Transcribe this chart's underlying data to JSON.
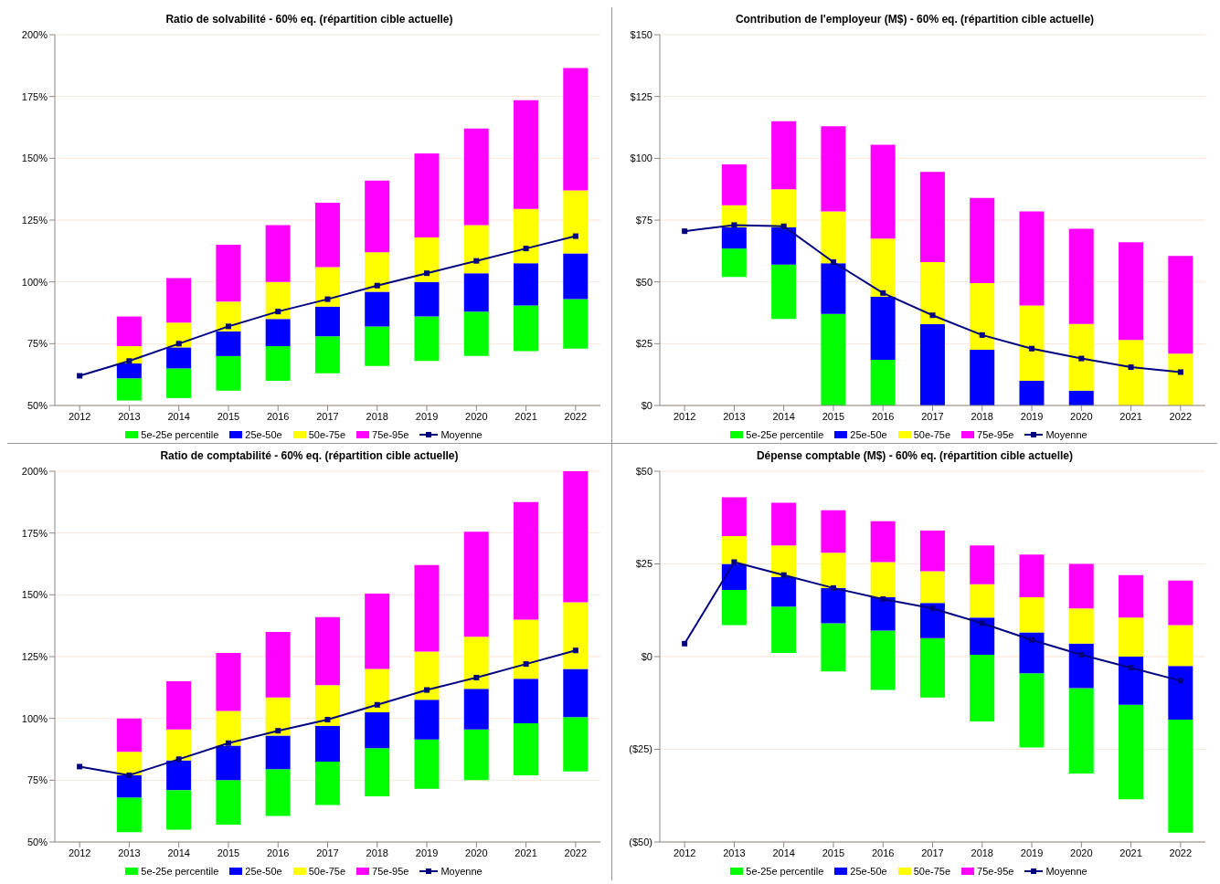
{
  "chart_data": [
    {
      "type": "bar",
      "title": "Ratio de solvabilité - 60% eq. (répartition cible actuelle)",
      "categories": [
        "2012",
        "2013",
        "2014",
        "2015",
        "2016",
        "2017",
        "2018",
        "2019",
        "2020",
        "2021",
        "2022"
      ],
      "series": [
        {
          "name": "5e-25e percentile",
          "color": "#00ff00",
          "base": [
            null,
            52,
            53,
            56,
            60,
            63,
            66,
            68,
            70,
            72,
            73
          ],
          "values": [
            null,
            9,
            12,
            14,
            14,
            15,
            16,
            18,
            18,
            18.5,
            20
          ]
        },
        {
          "name": "25e-50e",
          "color": "#0000ff",
          "base": [
            null,
            61,
            65,
            70,
            74,
            78,
            82,
            86,
            88,
            90.5,
            93
          ],
          "values": [
            null,
            6,
            8.5,
            10,
            11,
            12,
            14,
            14,
            15.5,
            17,
            18.5
          ]
        },
        {
          "name": "50e-75e",
          "color": "#ffff00",
          "base": [
            null,
            67,
            73.5,
            80,
            85,
            90,
            96,
            100,
            103.5,
            107.5,
            111.5
          ],
          "values": [
            null,
            7,
            10,
            12,
            15,
            16,
            16,
            18,
            19.5,
            22,
            25.5
          ]
        },
        {
          "name": "75e-95e",
          "color": "#ff00ff",
          "base": [
            null,
            74,
            83.5,
            92,
            100,
            106,
            112,
            118,
            123,
            129.5,
            137
          ],
          "values": [
            null,
            12,
            18,
            23,
            23,
            26,
            29,
            34,
            39,
            44,
            49.5
          ]
        },
        {
          "name": "Moyenne",
          "color": "#000080",
          "type": "line",
          "values": [
            62,
            68,
            75,
            82,
            88,
            93,
            98.5,
            103.5,
            108.5,
            113.5,
            118.5
          ]
        }
      ],
      "ylim": [
        50,
        200
      ],
      "yticks": [
        {
          "value": 50,
          "label": "50%"
        },
        {
          "value": 75,
          "label": "75%"
        },
        {
          "value": 100,
          "label": "100%"
        },
        {
          "value": 125,
          "label": "125%"
        },
        {
          "value": 150,
          "label": "150%"
        },
        {
          "value": 175,
          "label": "175%"
        },
        {
          "value": 200,
          "label": "200%"
        }
      ],
      "grid": "y",
      "legend": "bottom",
      "marker": "square"
    },
    {
      "type": "bar",
      "title": "Contribution de l'employeur (M$) - 60% eq. (répartition cible actuelle)",
      "categories": [
        "2012",
        "2013",
        "2014",
        "2015",
        "2016",
        "2017",
        "2018",
        "2019",
        "2020",
        "2021",
        "2022"
      ],
      "series": [
        {
          "name": "5e-25e percentile",
          "color": "#00ff00",
          "base": [
            null,
            52,
            35,
            0,
            0,
            null,
            null,
            null,
            null,
            null,
            null
          ],
          "values": [
            null,
            11.5,
            22,
            37,
            18.5,
            null,
            null,
            null,
            null,
            null,
            null
          ]
        },
        {
          "name": "25e-50e",
          "color": "#0000ff",
          "base": [
            null,
            63.5,
            57,
            37,
            18.5,
            0,
            0,
            0,
            0,
            null,
            null
          ],
          "values": [
            null,
            8.5,
            15,
            20.5,
            25.5,
            33,
            22.5,
            10,
            6,
            null,
            null
          ]
        },
        {
          "name": "50e-75e",
          "color": "#ffff00",
          "base": [
            null,
            72,
            72,
            57.5,
            44,
            33,
            22.5,
            10,
            6,
            0,
            0
          ],
          "values": [
            null,
            9,
            15.5,
            21,
            23.5,
            25,
            27,
            30.5,
            27,
            26.5,
            21
          ]
        },
        {
          "name": "75e-95e",
          "color": "#ff00ff",
          "base": [
            null,
            81,
            87.5,
            78.5,
            67.5,
            58,
            49.5,
            40.5,
            33,
            26.5,
            21
          ],
          "values": [
            null,
            16.5,
            27.5,
            34.5,
            38,
            36.5,
            34.5,
            38,
            38.5,
            39.5,
            39.5
          ]
        },
        {
          "name": "Moyenne",
          "color": "#000080",
          "type": "line",
          "values": [
            70.5,
            73,
            72.5,
            58,
            45.5,
            36.5,
            28.5,
            23,
            19,
            15.5,
            13.5
          ]
        }
      ],
      "ylim": [
        0,
        150
      ],
      "yticks": [
        {
          "value": 0,
          "label": "$0"
        },
        {
          "value": 25,
          "label": "$25"
        },
        {
          "value": 50,
          "label": "$50"
        },
        {
          "value": 75,
          "label": "$75"
        },
        {
          "value": 100,
          "label": "$100"
        },
        {
          "value": 125,
          "label": "$125"
        },
        {
          "value": 150,
          "label": "$150"
        }
      ],
      "grid": "y",
      "legend": "bottom",
      "marker": "square"
    },
    {
      "type": "bar",
      "title": "Ratio de comptabilité - 60% eq. (répartition cible actuelle)",
      "categories": [
        "2012",
        "2013",
        "2014",
        "2015",
        "2016",
        "2017",
        "2018",
        "2019",
        "2020",
        "2021",
        "2022"
      ],
      "series": [
        {
          "name": "5e-25e percentile",
          "color": "#00ff00",
          "base": [
            null,
            54,
            55,
            57,
            60.5,
            65,
            68.5,
            71.5,
            75,
            77,
            78.5
          ],
          "values": [
            null,
            14,
            16,
            18,
            19,
            17.5,
            19.5,
            20,
            20.5,
            21,
            22
          ]
        },
        {
          "name": "25e-50e",
          "color": "#0000ff",
          "base": [
            null,
            68,
            71,
            75,
            79.5,
            82.5,
            88,
            91.5,
            95.5,
            98,
            100.5
          ],
          "values": [
            null,
            9,
            12,
            14,
            13.5,
            14.5,
            14.5,
            16,
            16.5,
            18,
            19.5
          ]
        },
        {
          "name": "50e-75e",
          "color": "#ffff00",
          "base": [
            null,
            77,
            83,
            89,
            93,
            97,
            102.5,
            107.5,
            112,
            116,
            120
          ],
          "values": [
            null,
            9.5,
            12.5,
            14,
            15.5,
            16.5,
            17.5,
            19.5,
            21,
            24,
            27
          ]
        },
        {
          "name": "75e-95e",
          "color": "#ff00ff",
          "base": [
            null,
            86.5,
            95.5,
            103,
            108.5,
            113.5,
            120,
            127,
            133,
            140,
            147
          ],
          "values": [
            null,
            13.5,
            19.5,
            23.5,
            26.5,
            27.5,
            30.5,
            35,
            42.5,
            47.5,
            53
          ]
        },
        {
          "name": "Moyenne",
          "color": "#000080",
          "type": "line",
          "values": [
            80.5,
            77,
            83.5,
            90,
            95,
            99.5,
            105.5,
            111.5,
            116.5,
            122,
            127.5
          ]
        }
      ],
      "ylim": [
        50,
        200
      ],
      "yticks": [
        {
          "value": 50,
          "label": "50%"
        },
        {
          "value": 75,
          "label": "75%"
        },
        {
          "value": 100,
          "label": "100%"
        },
        {
          "value": 125,
          "label": "125%"
        },
        {
          "value": 150,
          "label": "150%"
        },
        {
          "value": 175,
          "label": "175%"
        },
        {
          "value": 200,
          "label": "200%"
        }
      ],
      "grid": "y",
      "legend": "bottom",
      "marker": "square"
    },
    {
      "type": "bar",
      "title": "Dépense comptable (M$) - 60% eq. (répartition cible actuelle)",
      "categories": [
        "2012",
        "2013",
        "2014",
        "2015",
        "2016",
        "2017",
        "2018",
        "2019",
        "2020",
        "2021",
        "2022"
      ],
      "series": [
        {
          "name": "5e-25e percentile",
          "color": "#00ff00",
          "base": [
            null,
            8.5,
            1,
            -4,
            -9,
            -11,
            -17.5,
            -24.5,
            -31.5,
            -38.5,
            -47.5
          ],
          "values": [
            null,
            9.5,
            12.5,
            13,
            16,
            16,
            18,
            20,
            23,
            25.5,
            30.5
          ]
        },
        {
          "name": "25e-50e",
          "color": "#0000ff",
          "base": [
            null,
            18,
            13.5,
            9,
            7,
            5,
            0.5,
            -4.5,
            -8.5,
            -13,
            -17
          ],
          "values": [
            null,
            7,
            8,
            9.5,
            9,
            9.5,
            10,
            11,
            12,
            13,
            14.5
          ]
        },
        {
          "name": "50e-75e",
          "color": "#ffff00",
          "base": [
            null,
            25,
            21.5,
            18.5,
            16,
            14.5,
            10.5,
            6.5,
            3.5,
            0,
            -2.5
          ],
          "values": [
            null,
            7.5,
            8.5,
            9.5,
            9.5,
            8.5,
            9,
            9.5,
            9.5,
            10.5,
            11
          ]
        },
        {
          "name": "75e-95e",
          "color": "#ff00ff",
          "base": [
            null,
            32.5,
            30,
            28,
            25.5,
            23,
            19.5,
            16,
            13,
            10.5,
            8.5
          ],
          "values": [
            null,
            10.5,
            11.5,
            11.5,
            11,
            11,
            10.5,
            11.5,
            12,
            11.5,
            12
          ]
        },
        {
          "name": "Moyenne",
          "color": "#000080",
          "type": "line",
          "values": [
            3.5,
            25.5,
            22,
            18.5,
            15.5,
            13,
            9,
            4.5,
            0.5,
            -3,
            -6.5
          ]
        }
      ],
      "ylim": [
        -50,
        50
      ],
      "yticks": [
        {
          "value": -50,
          "label": "($50)"
        },
        {
          "value": -25,
          "label": "($25)"
        },
        {
          "value": 0,
          "label": "$0"
        },
        {
          "value": 25,
          "label": "$25"
        },
        {
          "value": 50,
          "label": "$50"
        }
      ],
      "grid": "y",
      "legend": "bottom",
      "marker": "square"
    }
  ]
}
